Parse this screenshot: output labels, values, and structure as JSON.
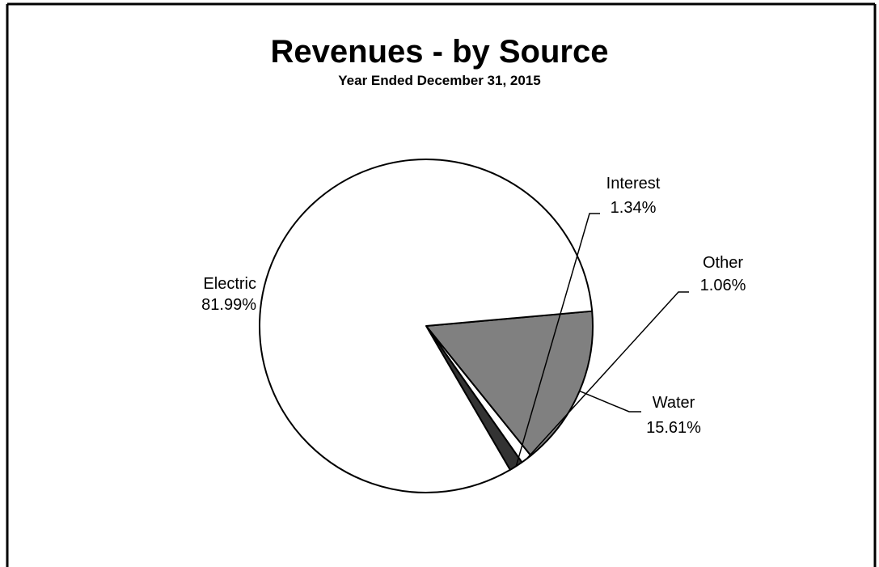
{
  "chart_data": {
    "type": "pie",
    "title": "Revenues - by Source",
    "subtitle": "Year Ended December 31, 2015",
    "slices": [
      {
        "label": "Electric",
        "value": 81.99,
        "value_label": "81.99%",
        "color": "#ffffff"
      },
      {
        "label": "Interest",
        "value": 1.34,
        "value_label": "1.34%",
        "color": "#333333"
      },
      {
        "label": "Other",
        "value": 1.06,
        "value_label": "1.06%",
        "color": "#ffffff"
      },
      {
        "label": "Water",
        "value": 15.61,
        "value_label": "15.61%",
        "color": "#808080"
      }
    ]
  }
}
